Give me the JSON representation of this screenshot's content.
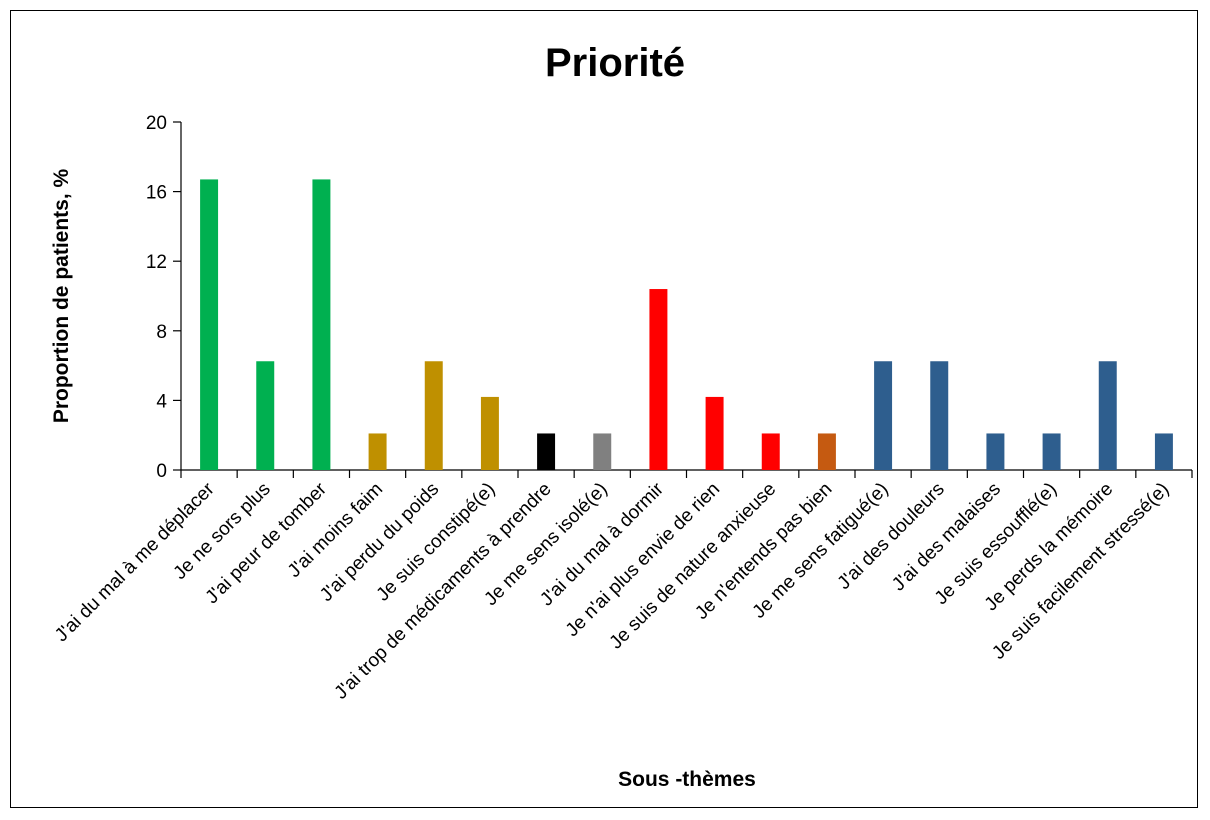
{
  "chart_data": {
    "type": "bar",
    "title": "Priorité",
    "xlabel": "Sous -thèmes",
    "ylabel": "Proportion de patients, %",
    "ylim": [
      0,
      20
    ],
    "yticks": [
      0,
      4,
      8,
      12,
      16,
      20
    ],
    "grid": false,
    "legend": "none",
    "categories": [
      "J'ai du mal à me déplacer",
      "Je ne sors plus",
      "J'ai peur de tomber",
      "J'ai moins faim",
      "J'ai perdu du poids",
      "Je suis constipé(e)",
      "J'ai trop de médicaments à prendre",
      "Je me sens isolé(e)",
      "J'ai du mal à dormir",
      "Je n'ai plus envie de rien",
      "Je suis de nature anxieuse",
      "Je n'entends pas bien",
      "Je me sens fatigué(e)",
      "J'ai des douleurs",
      "J'ai des malaises",
      "Je suis essoufflé(e)",
      "Je perds la mémoire",
      "Je suis facilement stressé(e)"
    ],
    "values": [
      16.7,
      6.25,
      16.7,
      2.1,
      6.25,
      4.2,
      2.1,
      2.1,
      10.4,
      4.2,
      2.1,
      2.1,
      6.25,
      6.25,
      2.1,
      2.1,
      6.25,
      2.1
    ],
    "colors": [
      "#00b050",
      "#00b050",
      "#00b050",
      "#bf9000",
      "#bf9000",
      "#bf9000",
      "#000000",
      "#808080",
      "#ff0000",
      "#ff0000",
      "#ff0000",
      "#c55a11",
      "#2e5e8e",
      "#2e5e8e",
      "#2e5e8e",
      "#2e5e8e",
      "#2e5e8e",
      "#2e5e8e"
    ]
  }
}
